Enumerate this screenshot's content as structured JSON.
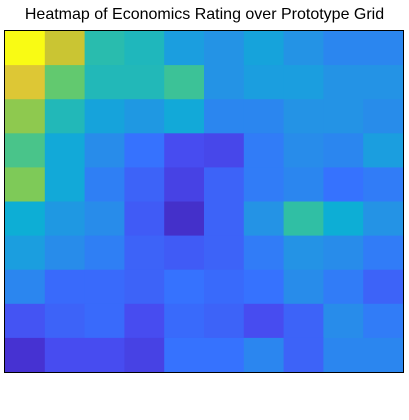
{
  "chart_data": {
    "type": "heatmap",
    "title": "Heatmap of Economics Rating over Prototype Grid",
    "xlabel": "",
    "ylabel": "",
    "rows": 10,
    "cols": 10,
    "colormap": "parula",
    "value_range": [
      0,
      1
    ],
    "values": [
      [
        1.0,
        0.82,
        0.58,
        0.55,
        0.44,
        0.4,
        0.46,
        0.4,
        0.36,
        0.36
      ],
      [
        0.85,
        0.68,
        0.56,
        0.56,
        0.62,
        0.4,
        0.44,
        0.44,
        0.4,
        0.4
      ],
      [
        0.74,
        0.56,
        0.46,
        0.42,
        0.48,
        0.36,
        0.36,
        0.4,
        0.4,
        0.38
      ],
      [
        0.64,
        0.48,
        0.38,
        0.3,
        0.2,
        0.18,
        0.33,
        0.38,
        0.36,
        0.44
      ],
      [
        0.72,
        0.48,
        0.34,
        0.26,
        0.16,
        0.26,
        0.33,
        0.36,
        0.3,
        0.33
      ],
      [
        0.5,
        0.42,
        0.38,
        0.24,
        0.08,
        0.26,
        0.4,
        0.6,
        0.5,
        0.4
      ],
      [
        0.44,
        0.38,
        0.34,
        0.26,
        0.24,
        0.26,
        0.33,
        0.4,
        0.38,
        0.33
      ],
      [
        0.36,
        0.28,
        0.28,
        0.26,
        0.3,
        0.28,
        0.3,
        0.38,
        0.33,
        0.26
      ],
      [
        0.22,
        0.26,
        0.28,
        0.2,
        0.28,
        0.26,
        0.2,
        0.26,
        0.38,
        0.33
      ],
      [
        0.1,
        0.2,
        0.2,
        0.16,
        0.3,
        0.3,
        0.36,
        0.26,
        0.36,
        0.36
      ]
    ],
    "grid": false,
    "legend": "none"
  }
}
